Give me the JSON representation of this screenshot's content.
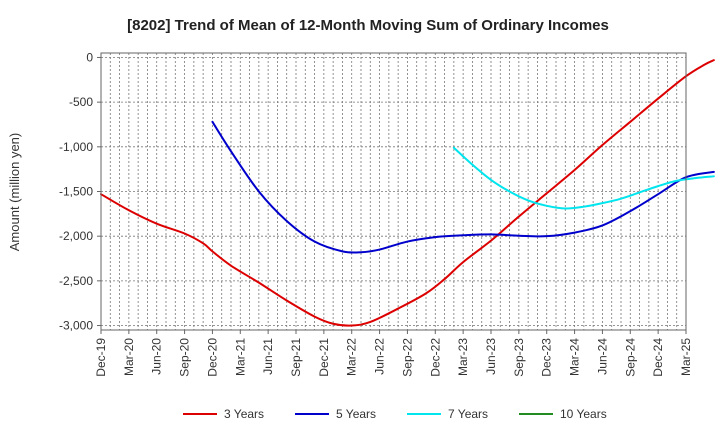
{
  "chart_data": {
    "type": "line",
    "title": "[8202]  Trend of Mean of 12-Month Moving Sum of Ordinary Incomes",
    "xlabel": "",
    "ylabel": "Amount (million yen)",
    "ylim": [
      -3050,
      50
    ],
    "yticks": [
      0,
      -500,
      -1000,
      -1500,
      -2000,
      -2500,
      -3000
    ],
    "ytick_labels": [
      "0",
      "-500",
      "-1,000",
      "-1,500",
      "-2,000",
      "-2,500",
      "-3,000"
    ],
    "x_start": "Dec-19",
    "x_months": 63,
    "xtick_labels": [
      "Dec-19",
      "Mar-20",
      "Jun-20",
      "Sep-20",
      "Dec-20",
      "Mar-21",
      "Jun-21",
      "Sep-21",
      "Dec-21",
      "Mar-22",
      "Jun-22",
      "Sep-22",
      "Dec-22",
      "Mar-23",
      "Jun-23",
      "Sep-23",
      "Dec-23",
      "Mar-24",
      "Jun-24",
      "Sep-24",
      "Dec-24",
      "Mar-25"
    ],
    "grid": true,
    "legend_position": "bottom",
    "series": [
      {
        "name": "3 Years",
        "color": "#dd0000",
        "points": [
          [
            0,
            -1530
          ],
          [
            3,
            -1710
          ],
          [
            6,
            -1860
          ],
          [
            9,
            -1970
          ],
          [
            11,
            -2080
          ],
          [
            12,
            -2170
          ],
          [
            14,
            -2330
          ],
          [
            17,
            -2520
          ],
          [
            20,
            -2720
          ],
          [
            23,
            -2900
          ],
          [
            25,
            -2980
          ],
          [
            27,
            -3000
          ],
          [
            29,
            -2960
          ],
          [
            32,
            -2810
          ],
          [
            35,
            -2640
          ],
          [
            37,
            -2480
          ],
          [
            39,
            -2290
          ],
          [
            42,
            -2050
          ],
          [
            45,
            -1780
          ],
          [
            48,
            -1520
          ],
          [
            51,
            -1260
          ],
          [
            54,
            -980
          ],
          [
            57,
            -720
          ],
          [
            60,
            -460
          ],
          [
            63,
            -210
          ],
          [
            65,
            -80
          ],
          [
            66,
            -30
          ]
        ]
      },
      {
        "name": "5 Years",
        "color": "#0000cc",
        "points": [
          [
            12,
            -720
          ],
          [
            14,
            -1050
          ],
          [
            17,
            -1500
          ],
          [
            20,
            -1830
          ],
          [
            23,
            -2060
          ],
          [
            26,
            -2170
          ],
          [
            28,
            -2180
          ],
          [
            30,
            -2150
          ],
          [
            33,
            -2060
          ],
          [
            36,
            -2010
          ],
          [
            39,
            -1990
          ],
          [
            42,
            -1980
          ],
          [
            45,
            -1995
          ],
          [
            48,
            -2000
          ],
          [
            51,
            -1960
          ],
          [
            54,
            -1880
          ],
          [
            57,
            -1720
          ],
          [
            60,
            -1530
          ],
          [
            63,
            -1340
          ],
          [
            66,
            -1280
          ]
        ]
      },
      {
        "name": "7 Years",
        "color": "#00e5ee",
        "points": [
          [
            38,
            -1010
          ],
          [
            40,
            -1200
          ],
          [
            42,
            -1370
          ],
          [
            44,
            -1500
          ],
          [
            46,
            -1600
          ],
          [
            48,
            -1660
          ],
          [
            50,
            -1690
          ],
          [
            52,
            -1670
          ],
          [
            54,
            -1630
          ],
          [
            56,
            -1580
          ],
          [
            58,
            -1510
          ],
          [
            60,
            -1440
          ],
          [
            62,
            -1380
          ],
          [
            64,
            -1350
          ],
          [
            66,
            -1330
          ]
        ]
      },
      {
        "name": "10 Years",
        "color": "#228b22",
        "points": []
      }
    ]
  }
}
